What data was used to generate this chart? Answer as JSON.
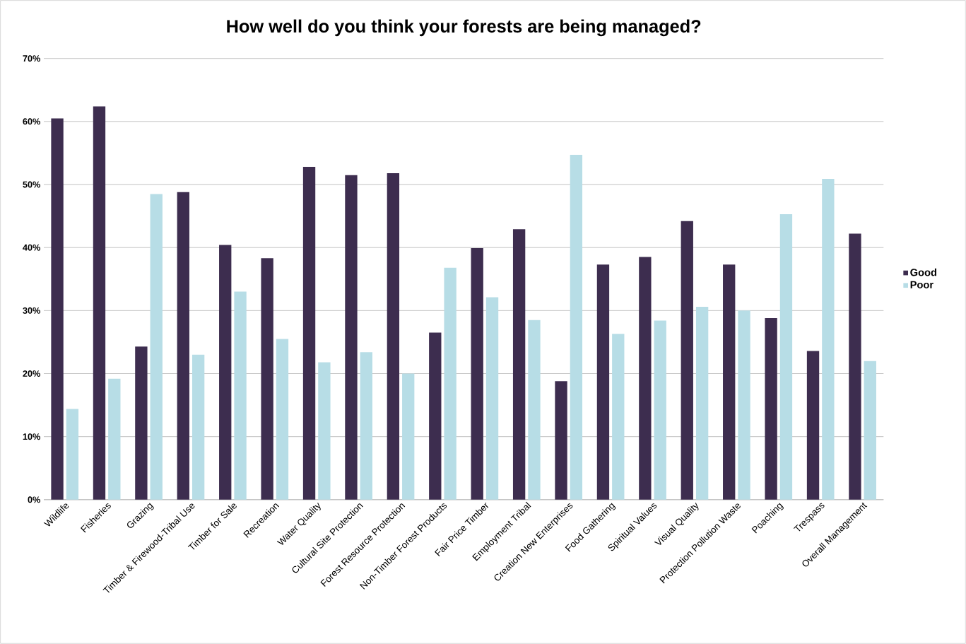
{
  "chart_data": {
    "type": "bar",
    "title": "How well do you think your forests are being managed?",
    "categories": [
      "Wildlife",
      "Fisheries",
      "Grazing",
      "Timber & Firewood-Tribal Use",
      "Timber for Sale",
      "Recreation",
      "Water Quality",
      "Cultural Site Protection",
      "Forest Resource Protection",
      "Non-Timber Forest Products",
      "Fair Price Timber",
      "Employment Tribal",
      "Creation New Enterprises",
      "Food Gathering",
      "Spiritual Values",
      "Visual Quality",
      "Protection Pollution Waste",
      "Poaching",
      "Trespass",
      "Overall Management"
    ],
    "series": [
      {
        "name": "Good",
        "color": "#3d2d4f",
        "values": [
          60.5,
          62.4,
          24.3,
          48.8,
          40.4,
          38.3,
          52.8,
          51.5,
          51.8,
          26.5,
          39.9,
          42.9,
          18.8,
          37.3,
          38.5,
          44.2,
          37.3,
          28.8,
          23.6,
          42.2
        ]
      },
      {
        "name": "Poor",
        "color": "#b7dde6",
        "values": [
          14.4,
          19.2,
          48.5,
          23.0,
          33.0,
          25.5,
          21.8,
          23.4,
          20.0,
          36.8,
          32.1,
          28.5,
          54.7,
          26.3,
          28.4,
          30.6,
          30.0,
          45.3,
          50.9,
          22.0
        ]
      }
    ],
    "ylim": [
      0,
      70
    ],
    "yticks": [
      {
        "value": 0,
        "label": "0%"
      },
      {
        "value": 10,
        "label": "10%"
      },
      {
        "value": 20,
        "label": "20%"
      },
      {
        "value": 30,
        "label": "30%"
      },
      {
        "value": 40,
        "label": "40%"
      },
      {
        "value": 50,
        "label": "50%"
      },
      {
        "value": 60,
        "label": "60%"
      },
      {
        "value": 70,
        "label": "70%"
      }
    ],
    "grid": "y",
    "legend": "right"
  }
}
